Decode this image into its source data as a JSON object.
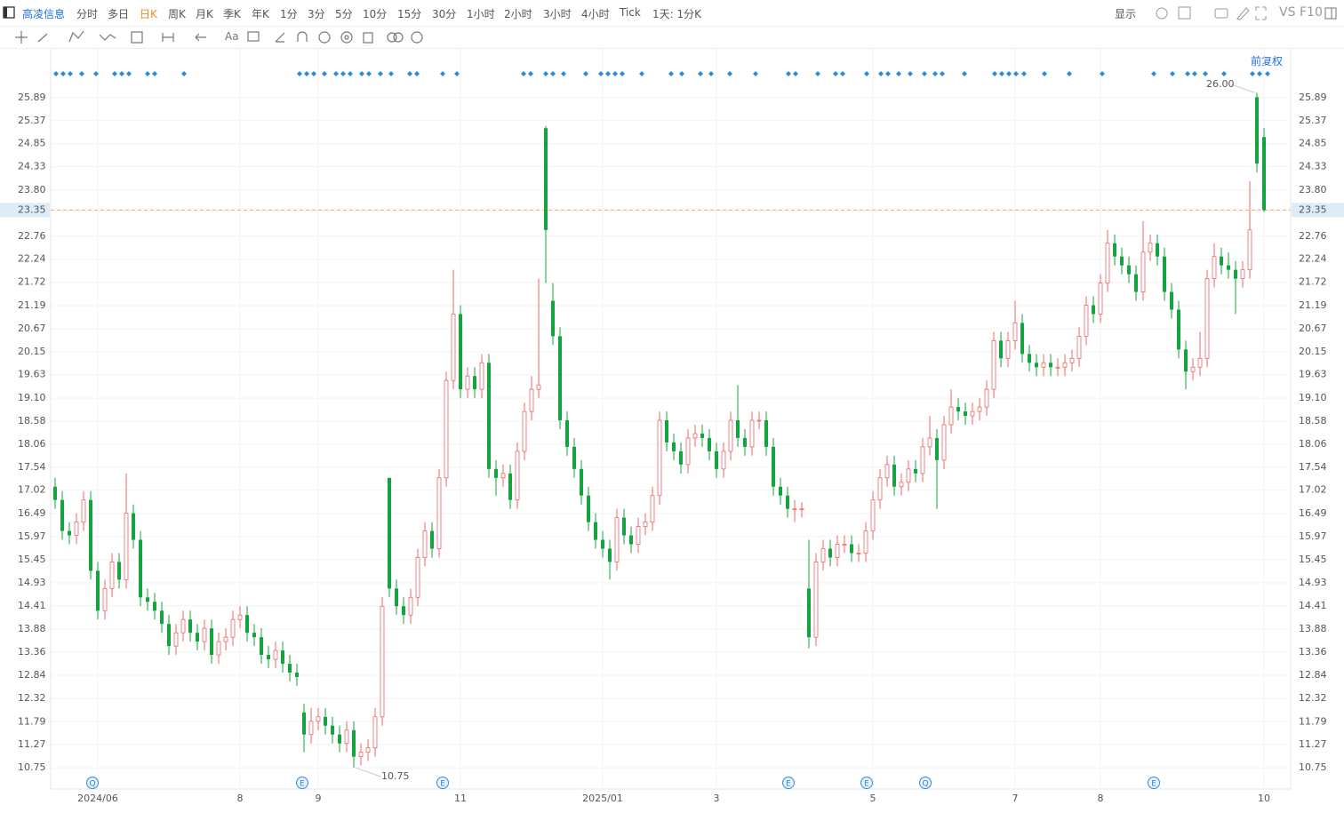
{
  "toolbar": {
    "stock": "高凌信息",
    "periods": [
      "分时",
      "多日",
      "日K",
      "周K",
      "月K",
      "季K",
      "年K",
      "1分",
      "3分",
      "5分",
      "10分",
      "15分",
      "30分",
      "1小时",
      "2小时",
      "3小时",
      "4小时",
      "Tick"
    ],
    "interval": "1天: 1分K",
    "display": "显示",
    "vs": "VS",
    "f10": "F10"
  },
  "drawing_tools": {
    "text_tool": "Aa"
  },
  "adjust": "前复权",
  "chart_data": {
    "type": "candlestick",
    "categories": [
      null,
      null,
      null,
      null,
      null,
      null,
      "2024/06",
      null,
      null,
      null,
      null,
      null,
      null,
      null,
      null,
      null,
      null,
      null,
      null,
      null,
      null,
      null,
      null,
      null,
      null,
      null,
      "8",
      null,
      null,
      null,
      null,
      null,
      null,
      null,
      null,
      null,
      null,
      "9",
      null,
      null,
      null,
      null,
      null,
      null,
      null,
      null,
      null,
      null,
      null,
      null,
      null,
      null,
      null,
      null,
      null,
      null,
      null,
      "11",
      null,
      null,
      null,
      null,
      null,
      null,
      null,
      null,
      null,
      null,
      null,
      null,
      null,
      null,
      null,
      null,
      null,
      null,
      null,
      "2025/01",
      null,
      null,
      null,
      null,
      null,
      null,
      null,
      null,
      null,
      null,
      null,
      null,
      null,
      null,
      null,
      "3",
      null,
      null,
      null,
      null,
      null,
      null,
      null,
      null,
      null,
      null,
      null,
      null,
      null,
      null,
      null,
      null,
      null,
      null,
      null,
      null,
      null,
      "5",
      null,
      null,
      null,
      null,
      null,
      null,
      null,
      null,
      null,
      null,
      null,
      null,
      null,
      null,
      null,
      null,
      null,
      null,
      null,
      "7",
      null,
      null,
      null,
      null,
      null,
      null,
      null,
      null,
      null,
      null,
      null,
      "8",
      null,
      null,
      null,
      null,
      null,
      null,
      null,
      null,
      null,
      null,
      null,
      null,
      null,
      null,
      null,
      null,
      null,
      null,
      null,
      null,
      null,
      null,
      "10"
    ],
    "open": [
      17.1,
      16.8,
      16.1,
      16.0,
      16.3,
      16.8,
      15.2,
      14.3,
      14.8,
      15.4,
      15.0,
      16.5,
      15.9,
      14.6,
      14.5,
      14.3,
      14.0,
      13.5,
      13.8,
      14.1,
      13.8,
      13.6,
      13.9,
      13.3,
      13.6,
      13.7,
      14.1,
      14.2,
      13.8,
      13.7,
      13.3,
      13.2,
      13.4,
      13.1,
      12.9,
      12.0,
      11.5,
      11.8,
      11.9,
      11.7,
      11.5,
      11.3,
      11.6,
      11.0,
      11.1,
      11.2,
      11.9,
      17.3,
      14.8,
      14.4,
      14.2,
      14.6,
      15.5,
      16.1,
      15.7,
      17.3,
      19.5,
      21.0,
      19.3,
      19.6,
      19.3,
      19.9,
      17.5,
      17.3,
      17.4,
      16.8,
      17.9,
      18.8,
      19.3,
      25.2,
      21.3,
      20.5,
      18.6,
      18.0,
      17.5,
      16.9,
      16.3,
      15.9,
      15.7,
      15.4,
      16.4,
      16.0,
      15.8,
      16.2,
      16.3,
      16.9,
      18.6,
      18.1,
      17.9,
      17.6,
      18.2,
      18.3,
      18.2,
      17.9,
      17.5,
      17.9,
      18.6,
      18.2,
      18.0,
      18.6,
      18.6,
      18.0,
      17.1,
      16.9,
      16.6,
      16.6,
      14.8,
      13.7,
      15.4,
      15.7,
      15.5,
      15.8,
      15.8,
      15.6,
      15.6,
      16.1,
      16.8,
      17.3,
      17.6,
      17.1,
      17.2,
      17.5,
      17.4,
      18.0,
      18.2,
      17.7,
      18.5,
      18.9,
      18.8,
      18.7,
      18.8,
      18.9,
      19.3,
      20.4,
      20.0,
      20.4,
      20.8,
      20.1,
      19.9,
      19.8,
      19.9,
      19.8,
      19.8,
      19.9,
      20.0,
      20.5,
      21.2,
      21.0,
      21.7,
      22.6,
      22.3,
      22.1,
      21.9,
      21.5,
      22.4,
      22.6,
      22.3,
      21.5,
      21.1,
      20.2,
      19.7,
      19.8,
      20.0,
      21.8,
      22.3,
      22.1,
      22.0,
      21.8,
      22.0,
      25.9,
      25.0
    ],
    "high": [
      17.3,
      17.0,
      16.3,
      16.5,
      17.0,
      17.0,
      15.4,
      15.0,
      15.6,
      15.6,
      17.4,
      16.7,
      16.1,
      14.8,
      14.7,
      14.5,
      14.2,
      14.0,
      14.3,
      14.3,
      14.0,
      14.1,
      14.1,
      13.8,
      13.9,
      14.3,
      14.4,
      14.4,
      14.0,
      13.9,
      13.5,
      13.6,
      13.6,
      13.3,
      13.1,
      12.2,
      12.1,
      12.1,
      12.1,
      11.9,
      11.7,
      11.8,
      11.8,
      11.3,
      11.4,
      12.1,
      14.6,
      17.3,
      15.0,
      14.6,
      14.8,
      15.7,
      16.3,
      16.3,
      17.5,
      19.7,
      22.0,
      21.2,
      19.8,
      19.8,
      20.1,
      20.1,
      17.7,
      17.6,
      17.6,
      18.1,
      19.0,
      19.6,
      21.8,
      25.25,
      21.7,
      20.7,
      18.8,
      18.2,
      17.7,
      17.1,
      16.5,
      16.1,
      15.9,
      16.6,
      16.6,
      16.2,
      16.4,
      16.5,
      17.1,
      18.8,
      18.8,
      18.3,
      18.1,
      18.4,
      18.5,
      18.5,
      18.4,
      18.1,
      18.1,
      18.8,
      19.4,
      18.4,
      18.8,
      18.8,
      18.8,
      18.2,
      17.3,
      17.1,
      16.8,
      16.75,
      15.9,
      15.6,
      15.9,
      15.9,
      16.0,
      16.0,
      16.0,
      15.8,
      16.3,
      17.0,
      17.5,
      17.8,
      17.8,
      17.4,
      17.7,
      17.7,
      18.2,
      18.7,
      18.4,
      18.7,
      19.3,
      19.1,
      19.0,
      19.0,
      19.1,
      19.5,
      20.6,
      20.6,
      20.6,
      21.3,
      21.0,
      20.3,
      20.1,
      20.1,
      20.1,
      20.0,
      20.1,
      20.2,
      20.7,
      21.4,
      21.4,
      21.9,
      22.9,
      22.8,
      22.5,
      22.3,
      22.1,
      23.1,
      22.8,
      22.8,
      22.5,
      21.7,
      21.3,
      20.4,
      20.0,
      20.6,
      22.0,
      22.6,
      22.5,
      22.4,
      22.2,
      22.2,
      24.0,
      26.0,
      25.2
    ],
    "low": [
      16.6,
      15.9,
      15.8,
      15.8,
      16.1,
      15.0,
      14.1,
      14.1,
      14.6,
      14.8,
      14.8,
      15.7,
      14.4,
      14.3,
      14.1,
      13.8,
      13.3,
      13.3,
      13.6,
      13.6,
      13.4,
      13.4,
      13.1,
      13.1,
      13.4,
      13.5,
      13.9,
      13.6,
      13.5,
      13.1,
      13.0,
      13.0,
      12.9,
      12.7,
      12.6,
      11.1,
      11.3,
      11.6,
      11.5,
      11.3,
      11.1,
      11.1,
      10.75,
      10.8,
      10.9,
      11.0,
      11.7,
      14.6,
      14.2,
      14.0,
      14.0,
      14.4,
      15.3,
      15.5,
      15.5,
      17.1,
      19.3,
      19.1,
      19.1,
      19.1,
      19.1,
      17.3,
      16.9,
      17.1,
      16.6,
      16.6,
      17.7,
      18.6,
      19.1,
      21.7,
      20.3,
      18.4,
      17.8,
      17.3,
      16.7,
      16.1,
      15.7,
      15.5,
      15.0,
      15.2,
      15.8,
      15.6,
      15.6,
      16.0,
      16.1,
      16.7,
      17.9,
      17.7,
      17.4,
      17.4,
      18.0,
      18.0,
      17.7,
      17.3,
      17.3,
      17.7,
      18.0,
      17.8,
      17.8,
      18.4,
      17.8,
      16.9,
      16.7,
      16.4,
      16.3,
      16.4,
      13.45,
      13.5,
      15.2,
      15.3,
      15.3,
      15.6,
      15.4,
      15.4,
      15.4,
      15.9,
      16.6,
      17.1,
      16.9,
      16.9,
      17.0,
      17.2,
      17.2,
      17.8,
      16.6,
      17.5,
      18.3,
      18.6,
      18.5,
      18.5,
      18.6,
      18.7,
      19.1,
      19.8,
      19.8,
      20.2,
      19.9,
      19.7,
      19.6,
      19.6,
      19.6,
      19.6,
      19.6,
      19.7,
      19.8,
      20.3,
      20.8,
      20.8,
      21.5,
      22.1,
      21.9,
      21.7,
      21.3,
      21.3,
      22.2,
      22.1,
      21.3,
      20.9,
      20.0,
      19.3,
      19.5,
      19.6,
      19.8,
      21.6,
      21.9,
      21.8,
      21.0,
      21.6,
      21.8,
      24.2,
      23.3
    ],
    "close": [
      16.8,
      16.1,
      16.0,
      16.3,
      16.8,
      15.2,
      14.3,
      14.8,
      15.4,
      15.0,
      16.5,
      15.9,
      14.6,
      14.5,
      14.3,
      14.0,
      13.5,
      13.8,
      14.1,
      13.8,
      13.6,
      13.9,
      13.3,
      13.6,
      13.7,
      14.1,
      14.2,
      13.8,
      13.7,
      13.3,
      13.2,
      13.4,
      13.1,
      12.9,
      12.8,
      11.5,
      11.8,
      11.9,
      11.7,
      11.5,
      11.3,
      11.6,
      11.0,
      11.1,
      11.2,
      11.9,
      14.4,
      14.8,
      14.4,
      14.2,
      14.6,
      15.5,
      16.1,
      15.7,
      17.3,
      19.5,
      21.0,
      19.3,
      19.6,
      19.3,
      19.9,
      17.5,
      17.3,
      17.4,
      16.8,
      17.9,
      18.8,
      19.3,
      19.4,
      22.9,
      20.5,
      18.6,
      18.0,
      17.5,
      16.9,
      16.3,
      15.9,
      15.7,
      15.4,
      16.4,
      16.0,
      15.8,
      16.2,
      16.3,
      16.9,
      18.6,
      18.1,
      17.9,
      17.6,
      18.2,
      18.3,
      18.2,
      17.9,
      17.5,
      17.9,
      18.6,
      18.2,
      18.0,
      18.6,
      18.6,
      18.0,
      17.1,
      16.9,
      16.6,
      16.6,
      16.6,
      13.7,
      15.4,
      15.7,
      15.5,
      15.8,
      15.8,
      15.6,
      15.6,
      16.1,
      16.8,
      17.3,
      17.6,
      17.1,
      17.2,
      17.5,
      17.4,
      18.0,
      18.2,
      17.7,
      18.5,
      18.9,
      18.8,
      18.7,
      18.8,
      18.9,
      19.3,
      20.4,
      20.0,
      20.4,
      20.8,
      20.1,
      19.9,
      19.8,
      19.9,
      19.8,
      19.8,
      19.9,
      20.0,
      20.5,
      21.2,
      21.0,
      21.7,
      22.6,
      22.3,
      22.1,
      21.9,
      21.5,
      22.4,
      22.6,
      22.3,
      21.5,
      21.1,
      20.2,
      19.7,
      19.8,
      20.0,
      21.8,
      22.3,
      22.1,
      22.0,
      21.8,
      22.0,
      22.9,
      24.4,
      23.35
    ],
    "up_color": "#e8686a",
    "down_color": "#14a33f",
    "ylim": [
      10.27,
      26.49
    ],
    "yticks": [
      25.89,
      25.37,
      24.85,
      24.33,
      {
        "value": 23.8,
        "label": "23.80"
      },
      22.76,
      22.24,
      21.72,
      21.19,
      20.67,
      20.15,
      19.63,
      {
        "value": 19.1,
        "label": "19.10"
      },
      18.58,
      18.06,
      17.54,
      17.02,
      16.49,
      15.97,
      15.45,
      14.93,
      14.41,
      13.88,
      13.36,
      12.84,
      12.32,
      11.79,
      11.27,
      10.75
    ],
    "grid": true,
    "last_price": 23.35,
    "annotations": [
      "26.00",
      "10.75"
    ],
    "event_markers": [
      "Q",
      "E",
      "E",
      "E",
      "E",
      "Q",
      "E"
    ]
  }
}
